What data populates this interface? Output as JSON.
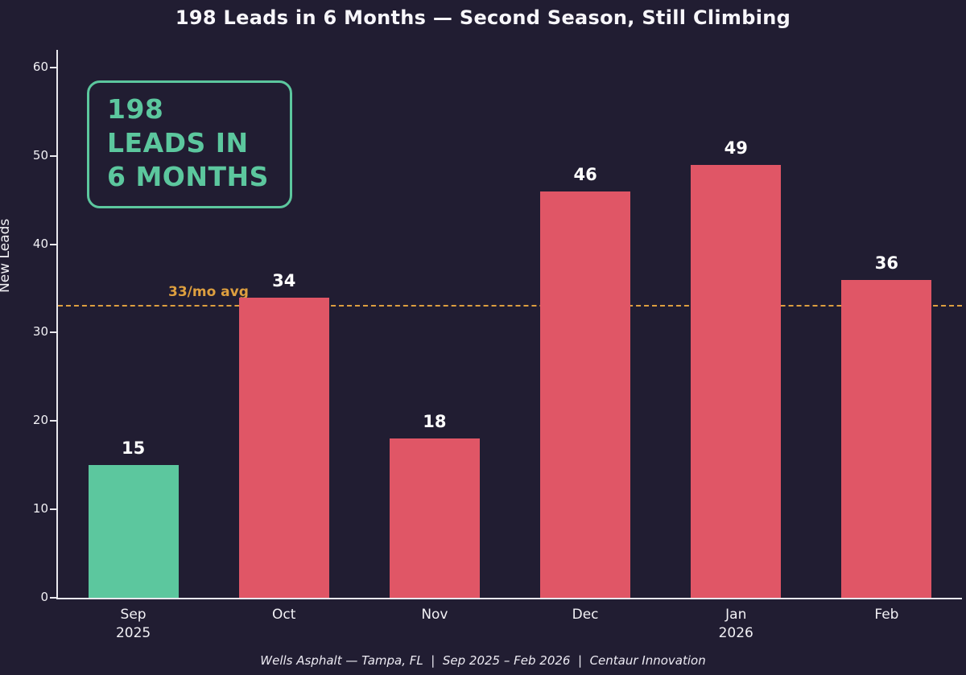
{
  "title": "198 Leads in 6 Months — Second Season, Still Climbing",
  "callout": {
    "text": "198\nLEADS IN\n6 MONTHS"
  },
  "caption": "Wells Asphalt — Tampa, FL  |  Sep 2025 – Feb 2026  |  Centaur Innovation",
  "colors": {
    "background": "#211d32",
    "teal": "#5cc79e",
    "red": "#e05666",
    "avg_line": "#dd9f3f",
    "text": "#f2f1f5"
  },
  "chart_data": {
    "type": "bar",
    "title": "198 Leads in 6 Months — Second Season, Still Climbing",
    "categories": [
      "Sep\n2025",
      "Oct",
      "Nov",
      "Dec",
      "Jan\n2026",
      "Feb"
    ],
    "values": [
      15,
      34,
      18,
      46,
      49,
      36
    ],
    "total": 198,
    "bar_colors": [
      "#5cc79e",
      "#e05666",
      "#e05666",
      "#e05666",
      "#e05666",
      "#e05666"
    ],
    "xlabel": "",
    "ylabel": "New Leads",
    "ylim": [
      0,
      62
    ],
    "yticks": [
      0,
      10,
      20,
      30,
      40,
      50,
      60
    ],
    "grid": false,
    "legend": "none",
    "avg_line": {
      "value": 33,
      "label": "33/mo avg",
      "color": "#dd9f3f"
    }
  }
}
